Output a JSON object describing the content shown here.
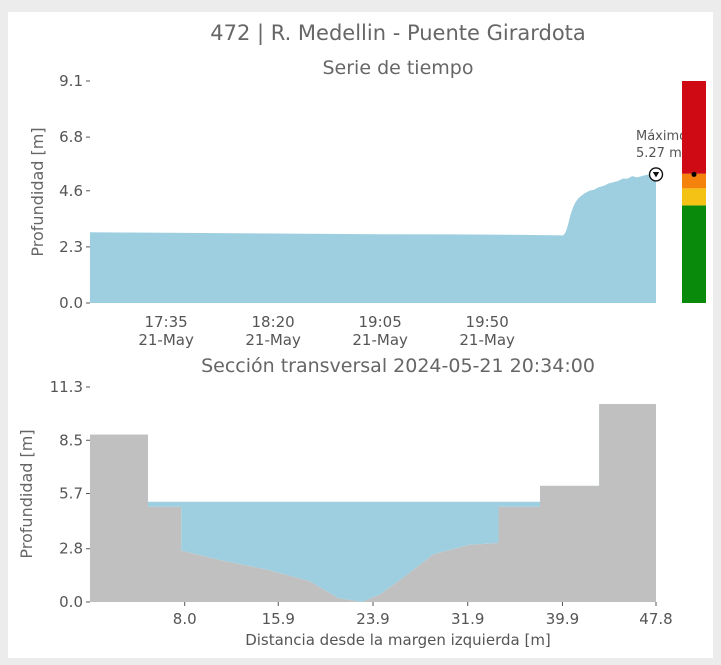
{
  "title": "472 | R. Medellin - Puente Girardota",
  "chart_data": [
    {
      "type": "area",
      "subtitle": "Serie de tiempo",
      "ylabel": "Profundidad [m]",
      "ylim": [
        0,
        9.1
      ],
      "yticks": [
        "0.0",
        "2.3",
        "4.6",
        "6.8",
        "9.1"
      ],
      "xticks": [
        {
          "time": "17:35",
          "date": "21-May"
        },
        {
          "time": "18:20",
          "date": "21-May"
        },
        {
          "time": "19:05",
          "date": "21-May"
        },
        {
          "time": "19:50",
          "date": "21-May"
        }
      ],
      "x_minutes": [
        -32,
        -20,
        0,
        30,
        60,
        90,
        120,
        150,
        167,
        168,
        169,
        170,
        171,
        172,
        173,
        174,
        176,
        178,
        180,
        182,
        184,
        186,
        188,
        190,
        192,
        194,
        196,
        198,
        200,
        202,
        204,
        206
      ],
      "x_reference": "17:35",
      "values": [
        2.9,
        2.89,
        2.88,
        2.86,
        2.84,
        2.82,
        2.81,
        2.79,
        2.77,
        2.9,
        3.2,
        3.6,
        3.9,
        4.1,
        4.25,
        4.35,
        4.5,
        4.6,
        4.65,
        4.75,
        4.8,
        4.9,
        4.95,
        5.0,
        5.1,
        5.1,
        5.2,
        5.15,
        5.2,
        5.25,
        5.27,
        5.27
      ],
      "fill_color": "#9ecfe0",
      "max_marker": {
        "label": "Máximo",
        "value_label": "5.27 m",
        "value": 5.27
      },
      "alert_bar": {
        "levels": [
          {
            "level": "verde",
            "from": 0,
            "to": 4.0,
            "color": "#0a8a0a"
          },
          {
            "level": "amarillo",
            "from": 4.0,
            "to": 4.7,
            "color": "#f4c214"
          },
          {
            "level": "naranja",
            "from": 4.7,
            "to": 5.3,
            "color": "#f4820c"
          },
          {
            "level": "rojo",
            "from": 5.3,
            "to": 9.1,
            "color": "#d00a14"
          }
        ],
        "current_value": 5.27
      }
    },
    {
      "type": "area",
      "subtitle": "Sección transversal 2024-05-21 20:34:00",
      "xlabel": "Distancia desde la margen izquierda [m]",
      "ylabel": "Profundidad [m]",
      "ylim": [
        0,
        11.3
      ],
      "xlim": [
        0,
        47.8
      ],
      "yticks": [
        "0.0",
        "2.8",
        "5.7",
        "8.5",
        "11.3"
      ],
      "xticks": [
        "8.0",
        "15.9",
        "23.9",
        "31.9",
        "39.9",
        "47.8"
      ],
      "ground_color": "#c0c0c0",
      "water_color": "#9ecfe0",
      "water_level": 5.27,
      "profile": {
        "x": [
          0,
          4.9,
          4.9,
          7.7,
          7.7,
          11,
          15,
          18.5,
          21,
          23,
          24.5,
          26.5,
          29,
          32,
          34.5,
          34.5,
          38,
          38,
          43,
          43,
          47.8
        ],
        "y": [
          8.8,
          8.8,
          5.0,
          5.0,
          2.7,
          2.2,
          1.7,
          1.1,
          0.2,
          0,
          0.4,
          1.3,
          2.5,
          3.0,
          3.1,
          5.0,
          5.0,
          6.1,
          6.1,
          10.4,
          10.4
        ]
      }
    }
  ]
}
